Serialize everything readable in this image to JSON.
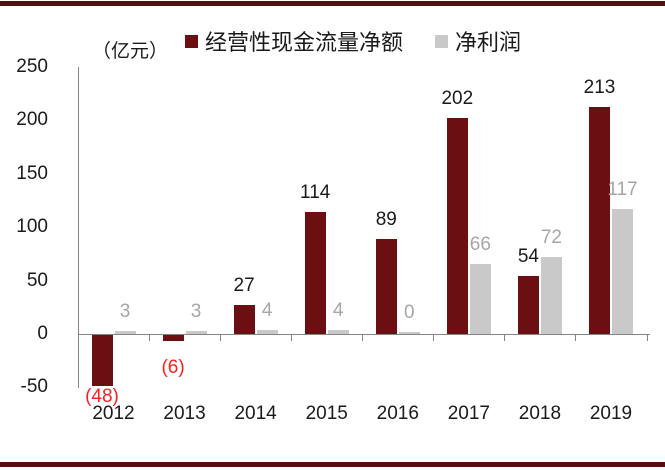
{
  "frame": {
    "accent_color": "#5c0b10"
  },
  "chart_data": {
    "type": "bar",
    "title": "",
    "unit_label": "（亿元）",
    "categories": [
      "2012",
      "2013",
      "2014",
      "2015",
      "2016",
      "2017",
      "2018",
      "2019"
    ],
    "series": [
      {
        "name": "经营性现金流量净额",
        "color": "#6b0f12",
        "values": [
          -48,
          -6,
          27,
          114,
          89,
          202,
          54,
          213
        ],
        "point_labels": [
          "(48)",
          "(6)",
          "27",
          "114",
          "89",
          "202",
          "54",
          "213"
        ]
      },
      {
        "name": "净利润",
        "color": "#c9c9c9",
        "values": [
          3,
          3,
          4,
          4,
          0,
          66,
          72,
          117
        ],
        "point_labels": [
          "3",
          "3",
          "4",
          "4",
          "0",
          "66",
          "72",
          "117"
        ]
      }
    ],
    "ylim": [
      -50,
      250
    ],
    "yticks": [
      250,
      200,
      150,
      100,
      50,
      0,
      -50
    ],
    "legend_position": "top",
    "grid": false,
    "colors": {
      "positive_label": "#1a1a1a",
      "negative_label": "#ff1f1f",
      "secondary_label": "#a6a6a6",
      "axis": "#848484"
    }
  }
}
